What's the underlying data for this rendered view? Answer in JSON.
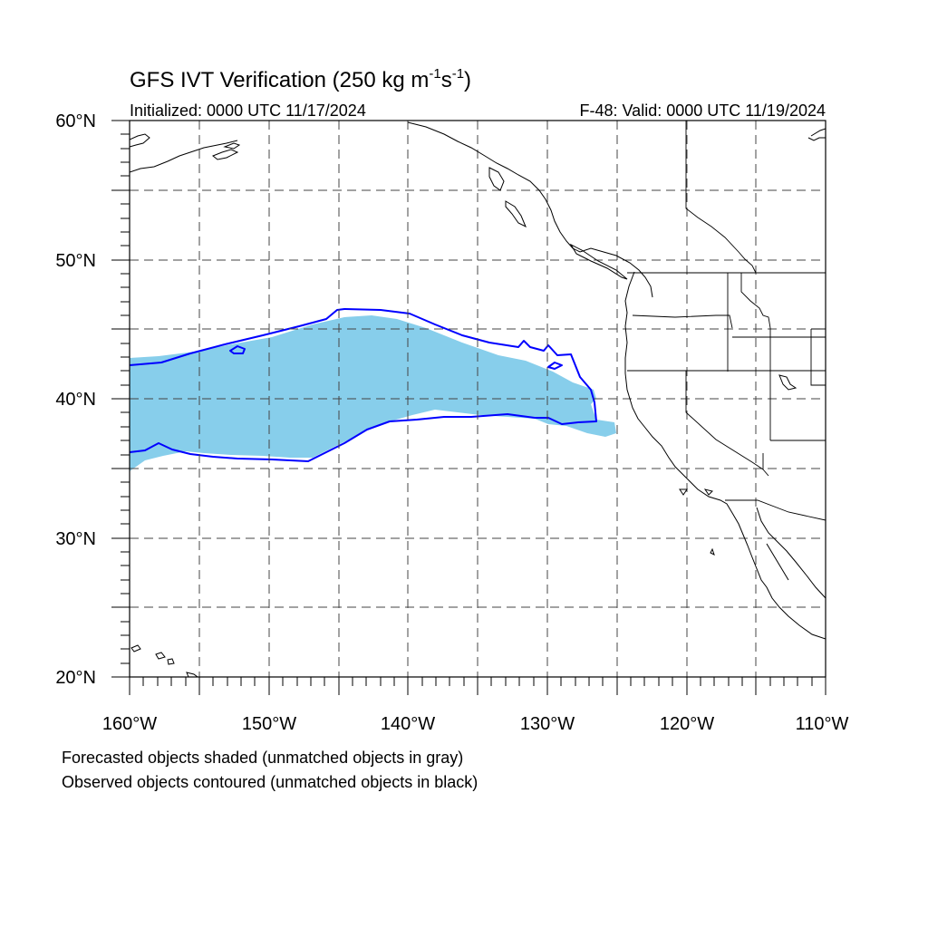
{
  "title": {
    "main": "GFS IVT Verification (250 kg m",
    "sup1": "-1",
    "mid": "s",
    "sup2": "-1",
    "end": ")"
  },
  "initialized": "Initialized: 0000 UTC 11/17/2024",
  "valid": "F-48: Valid: 0000 UTC 11/19/2024",
  "lat_labels": [
    "60°N",
    "50°N",
    "40°N",
    "30°N",
    "20°N"
  ],
  "lon_labels": [
    "160°W",
    "150°W",
    "140°W",
    "130°W",
    "120°W",
    "110°W"
  ],
  "legend": {
    "forecast": "Forecasted objects shaded (unmatched objects in gray)",
    "observed": "Observed objects contoured (unmatched objects in black)"
  },
  "map": {
    "lon_range": [
      -160,
      -110
    ],
    "lat_range": [
      20,
      60
    ],
    "grid_lon_step": 5,
    "grid_lat_step": 5,
    "forecast_color": "#87ceeb",
    "observed_color": "#0000ff"
  }
}
